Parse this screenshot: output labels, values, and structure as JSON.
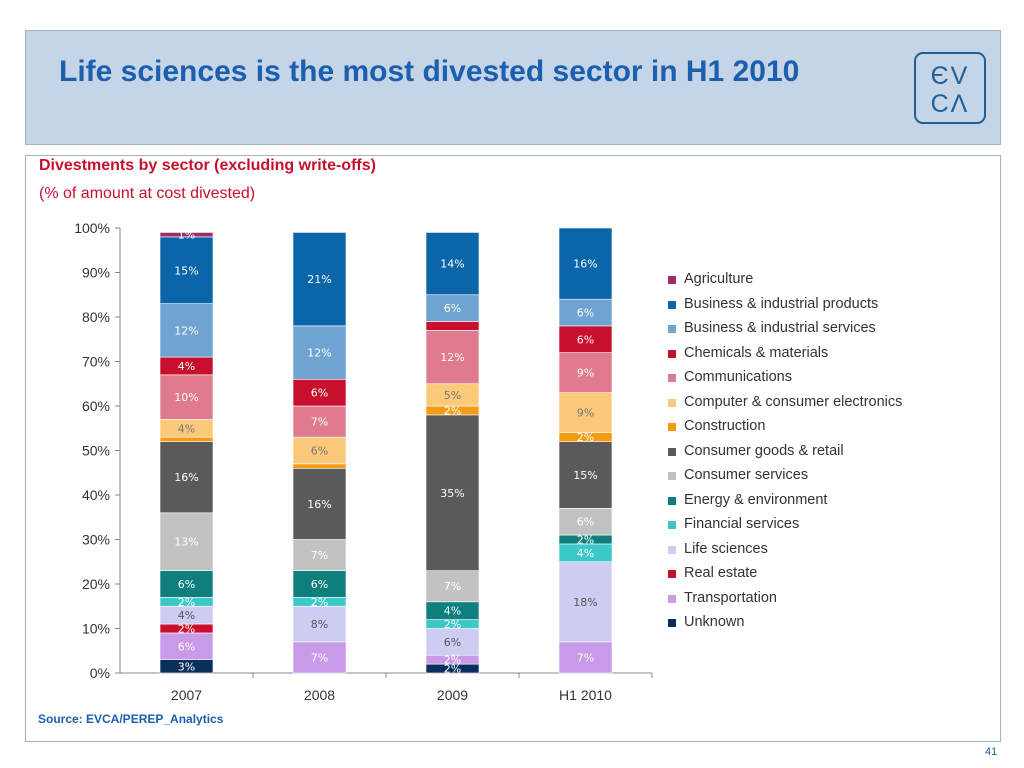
{
  "header": {
    "title": "Life sciences is the most divested sector in H1 2010",
    "logo_top": "ЄV",
    "logo_bottom": "CΛ"
  },
  "subtitle": "Divestments by sector (excluding write-offs)",
  "subtitle2": "(% of amount at cost divested)",
  "source": "Source: EVCA/PEREP_Analytics",
  "page_number": "41",
  "chart_data": {
    "type": "bar",
    "stacked": true,
    "ylim": [
      0,
      100
    ],
    "yticks": [
      "0%",
      "10%",
      "20%",
      "30%",
      "40%",
      "50%",
      "60%",
      "70%",
      "80%",
      "90%",
      "100%"
    ],
    "categories": [
      "2007",
      "2008",
      "2009",
      "H1 2010"
    ],
    "legend_position": "right",
    "series": [
      {
        "name": "Unknown",
        "color": "#0b2f5c",
        "label_color": "#ffffff",
        "values": [
          3,
          0,
          2,
          0
        ]
      },
      {
        "name": "Transportation",
        "color": "#c89ae8",
        "label_color": "#ffffff",
        "values": [
          6,
          7,
          2,
          7
        ]
      },
      {
        "name": "Real estate",
        "color": "#c8102e",
        "label_color": "#ffffff",
        "values": [
          2,
          0,
          0,
          0
        ]
      },
      {
        "name": "Life sciences",
        "color": "#cdcdf2",
        "label_color": "#555555",
        "values": [
          4,
          8,
          6,
          18
        ]
      },
      {
        "name": "Financial services",
        "color": "#3cc8c8",
        "label_color": "#ffffff",
        "values": [
          2,
          2,
          2,
          4
        ]
      },
      {
        "name": "Energy & environment",
        "color": "#0e7f7c",
        "label_color": "#ffffff",
        "values": [
          6,
          6,
          4,
          2
        ]
      },
      {
        "name": "Consumer services",
        "color": "#c2c2c2",
        "label_color": "#ffffff",
        "values": [
          13,
          7,
          7,
          6
        ]
      },
      {
        "name": "Consumer goods & retail",
        "color": "#5a5a5a",
        "label_color": "#ffffff",
        "values": [
          16,
          16,
          35,
          15
        ]
      },
      {
        "name": "Construction",
        "color": "#f39c12",
        "label_color": "#ffffff",
        "values": [
          1,
          1,
          2,
          2
        ]
      },
      {
        "name": "Computer & consumer electronics",
        "color": "#fbc97a",
        "label_color": "#777777",
        "values": [
          4,
          6,
          5,
          9
        ]
      },
      {
        "name": "Communications",
        "color": "#e07a8e",
        "label_color": "#ffffff",
        "values": [
          10,
          7,
          12,
          9
        ]
      },
      {
        "name": "Chemicals & materials",
        "color": "#c8102e",
        "label_color": "#ffffff",
        "values": [
          4,
          6,
          2,
          6
        ]
      },
      {
        "name": "Business & industrial services",
        "color": "#6ea3d2",
        "label_color": "#ffffff",
        "values": [
          12,
          12,
          6,
          6
        ]
      },
      {
        "name": "Business & industrial products",
        "color": "#0a66a8",
        "label_color": "#ffffff",
        "values": [
          15,
          21,
          14,
          16
        ]
      },
      {
        "name": "Agriculture",
        "color": "#9b2f6b",
        "label_color": "#ffffff",
        "values": [
          1,
          0,
          0,
          0
        ]
      }
    ],
    "data_labels": [
      [
        "3%",
        "6%",
        "2%",
        "4%",
        "2%",
        "6%",
        "13%",
        "16%",
        "",
        "4%",
        "10%",
        "4%",
        "12%",
        "15%",
        "1%"
      ],
      [
        "",
        "7%",
        "",
        "8%",
        "2%",
        "6%",
        "7%",
        "16%",
        "",
        "6%",
        "7%",
        "6%",
        "12%",
        "21%",
        ""
      ],
      [
        "2%",
        "2%",
        "",
        "6%",
        "2%",
        "4%",
        "7%",
        "35%",
        "2%",
        "5%",
        "12%",
        "",
        "6%",
        "14%",
        ""
      ],
      [
        "",
        "7%",
        "",
        "18%",
        "4%",
        "2%",
        "6%",
        "15%",
        "2%",
        "9%",
        "9%",
        "6%",
        "6%",
        "16%",
        ""
      ]
    ],
    "legend_order": [
      "Agriculture",
      "Business & industrial products",
      "Business & industrial services",
      "Chemicals & materials",
      "Communications",
      "Computer & consumer electronics",
      "Construction",
      "Consumer goods & retail",
      "Consumer services",
      "Energy & environment",
      "Financial services",
      "Life sciences",
      "Real estate",
      "Transportation",
      "Unknown"
    ]
  }
}
